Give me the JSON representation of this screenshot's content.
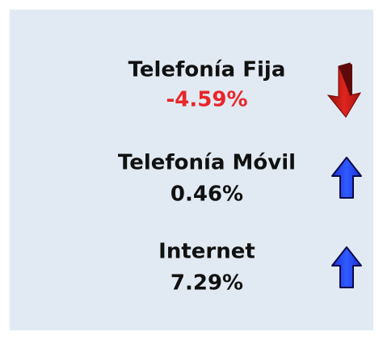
{
  "items": [
    {
      "label": "Telefonía Fija",
      "value": "-4.59%"
    },
    {
      "label": "Telefonía Móvil",
      "value": "0.46%"
    },
    {
      "label": "Internet",
      "value": "7.29%"
    }
  ]
}
